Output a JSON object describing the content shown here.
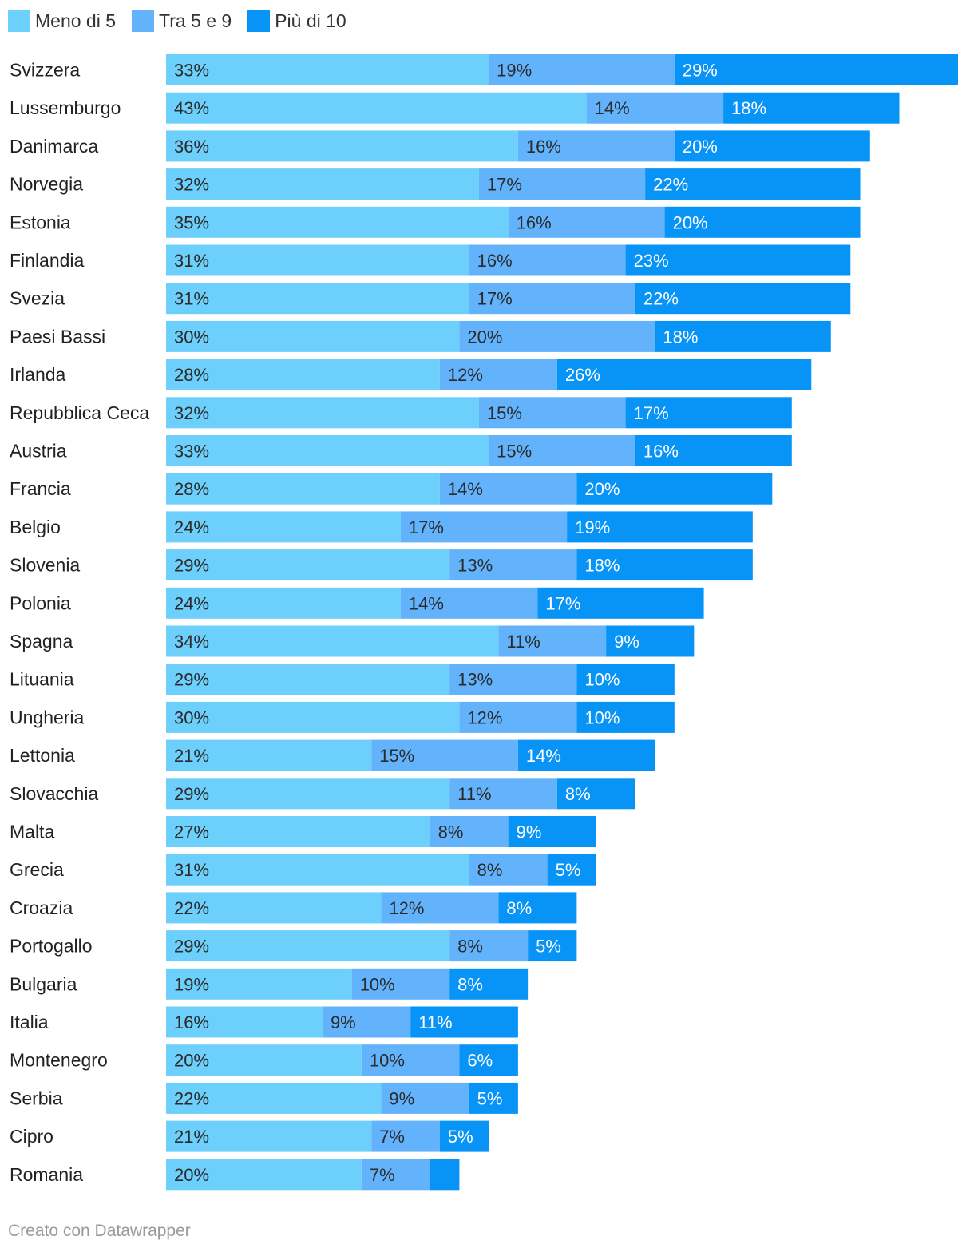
{
  "chart_data": {
    "type": "bar",
    "orientation": "horizontal",
    "stacked": true,
    "title": "",
    "xlabel": "",
    "ylabel": "",
    "legend_position": "top-left",
    "series": [
      {
        "name": "Meno di 5",
        "color": "#6dd0fc"
      },
      {
        "name": "Tra 5 e 9",
        "color": "#63b3fc"
      },
      {
        "name": "Più di 10",
        "color": "#0893f7"
      }
    ],
    "rows": [
      {
        "label": "Svizzera",
        "values": [
          33,
          19,
          29
        ],
        "labels": [
          "33%",
          "19%",
          "29%"
        ]
      },
      {
        "label": "Lussemburgo",
        "values": [
          43,
          14,
          18
        ],
        "labels": [
          "43%",
          "14%",
          "18%"
        ]
      },
      {
        "label": "Danimarca",
        "values": [
          36,
          16,
          20
        ],
        "labels": [
          "36%",
          "16%",
          "20%"
        ]
      },
      {
        "label": "Norvegia",
        "values": [
          32,
          17,
          22
        ],
        "labels": [
          "32%",
          "17%",
          "22%"
        ]
      },
      {
        "label": "Estonia",
        "values": [
          35,
          16,
          20
        ],
        "labels": [
          "35%",
          "16%",
          "20%"
        ]
      },
      {
        "label": "Finlandia",
        "values": [
          31,
          16,
          23
        ],
        "labels": [
          "31%",
          "16%",
          "23%"
        ]
      },
      {
        "label": "Svezia",
        "values": [
          31,
          17,
          22
        ],
        "labels": [
          "31%",
          "17%",
          "22%"
        ]
      },
      {
        "label": "Paesi Bassi",
        "values": [
          30,
          20,
          18
        ],
        "labels": [
          "30%",
          "20%",
          "18%"
        ]
      },
      {
        "label": "Irlanda",
        "values": [
          28,
          12,
          26
        ],
        "labels": [
          "28%",
          "12%",
          "26%"
        ]
      },
      {
        "label": "Repubblica Ceca",
        "values": [
          32,
          15,
          17
        ],
        "labels": [
          "32%",
          "15%",
          "17%"
        ]
      },
      {
        "label": "Austria",
        "values": [
          33,
          15,
          16
        ],
        "labels": [
          "33%",
          "15%",
          "16%"
        ]
      },
      {
        "label": "Francia",
        "values": [
          28,
          14,
          20
        ],
        "labels": [
          "28%",
          "14%",
          "20%"
        ]
      },
      {
        "label": "Belgio",
        "values": [
          24,
          17,
          19
        ],
        "labels": [
          "24%",
          "17%",
          "19%"
        ]
      },
      {
        "label": "Slovenia",
        "values": [
          29,
          13,
          18
        ],
        "labels": [
          "29%",
          "13%",
          "18%"
        ]
      },
      {
        "label": "Polonia",
        "values": [
          24,
          14,
          17
        ],
        "labels": [
          "24%",
          "14%",
          "17%"
        ]
      },
      {
        "label": "Spagna",
        "values": [
          34,
          11,
          9
        ],
        "labels": [
          "34%",
          "11%",
          "9%"
        ]
      },
      {
        "label": "Lituania",
        "values": [
          29,
          13,
          10
        ],
        "labels": [
          "29%",
          "13%",
          "10%"
        ]
      },
      {
        "label": "Ungheria",
        "values": [
          30,
          12,
          10
        ],
        "labels": [
          "30%",
          "12%",
          "10%"
        ]
      },
      {
        "label": "Lettonia",
        "values": [
          21,
          15,
          14
        ],
        "labels": [
          "21%",
          "15%",
          "14%"
        ]
      },
      {
        "label": "Slovacchia",
        "values": [
          29,
          11,
          8
        ],
        "labels": [
          "29%",
          "11%",
          "8%"
        ]
      },
      {
        "label": "Malta",
        "values": [
          27,
          8,
          9
        ],
        "labels": [
          "27%",
          "8%",
          "9%"
        ]
      },
      {
        "label": "Grecia",
        "values": [
          31,
          8,
          5
        ],
        "labels": [
          "31%",
          "8%",
          "5%"
        ]
      },
      {
        "label": "Croazia",
        "values": [
          22,
          12,
          8
        ],
        "labels": [
          "22%",
          "12%",
          "8%"
        ]
      },
      {
        "label": "Portogallo",
        "values": [
          29,
          8,
          5
        ],
        "labels": [
          "29%",
          "8%",
          "5%"
        ]
      },
      {
        "label": "Bulgaria",
        "values": [
          19,
          10,
          8
        ],
        "labels": [
          "19%",
          "10%",
          "8%"
        ]
      },
      {
        "label": "Italia",
        "values": [
          16,
          9,
          11
        ],
        "labels": [
          "16%",
          "9%",
          "11%"
        ]
      },
      {
        "label": "Montenegro",
        "values": [
          20,
          10,
          6
        ],
        "labels": [
          "20%",
          "10%",
          "6%"
        ]
      },
      {
        "label": "Serbia",
        "values": [
          22,
          9,
          5
        ],
        "labels": [
          "22%",
          "9%",
          "5%"
        ]
      },
      {
        "label": "Cipro",
        "values": [
          21,
          7,
          5
        ],
        "labels": [
          "21%",
          "7%",
          "5%"
        ]
      },
      {
        "label": "Romania",
        "values": [
          20,
          7,
          3
        ],
        "labels": [
          "20%",
          "7%",
          ""
        ]
      }
    ],
    "xlim": [
      0,
      81
    ]
  },
  "footer": {
    "text": "Creato con Datawrapper"
  }
}
